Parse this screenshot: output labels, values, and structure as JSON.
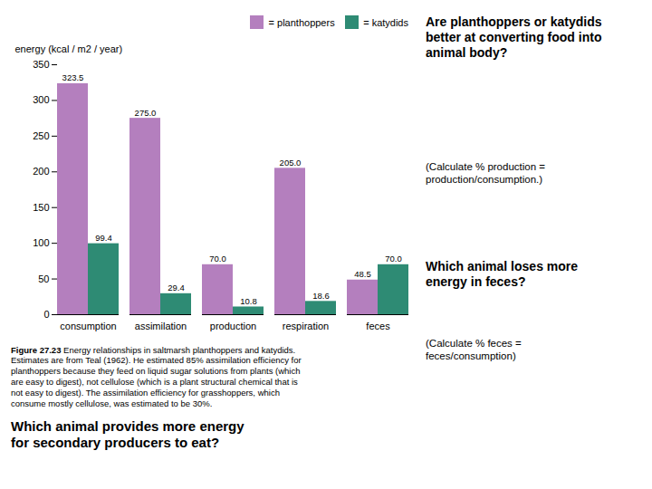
{
  "chart_data": {
    "type": "bar",
    "categories": [
      "consumption",
      "assimilation",
      "production",
      "respiration",
      "feces"
    ],
    "series": [
      {
        "name": "= planthoppers",
        "color": "#b47fbe",
        "values": [
          323.5,
          275.0,
          70.0,
          205.0,
          48.5
        ],
        "value_labels": [
          "323.5",
          "275.0",
          "70.0",
          "205.0",
          "48.5"
        ]
      },
      {
        "name": "= katydids",
        "color": "#2e8b74",
        "values": [
          99.4,
          29.4,
          10.8,
          18.6,
          70.0
        ],
        "value_labels": [
          "99.4",
          "29.4",
          "10.8",
          "18.6",
          "70.0"
        ]
      }
    ],
    "ylabel": "energy (kcal / m2 / year)",
    "ylim": [
      0,
      350
    ],
    "yticks": [
      0,
      50,
      100,
      150,
      200,
      250,
      300,
      350
    ],
    "legend": "upper right",
    "data_labels": true,
    "annotations": [
      "Are planthoppers or katydids\nbetter at converting food into\nanimal body?",
      "(Calculate % production =\nproduction/consumption.)",
      "Which animal loses more\nenergy in feces?",
      "(Calculate % feces =\nfeces/consumption)",
      "Figure 27.23",
      " Energy relationships in saltmarsh planthoppers and katydids.\nEstimates are from Teal (1962). He estimated 85% assimilation efficiency for\nplanthoppers because they feed on liquid sugar solutions from plants (which\nare easy to digest), not cellulose (which is a plant structural chemical that is\nnot easy to digest). The assimilation efficiency for grasshoppers, which\nconsume mostly cellulose, was estimated to be 30%.",
      "Which animal provides more energy\nfor secondary producers to eat?"
    ]
  }
}
